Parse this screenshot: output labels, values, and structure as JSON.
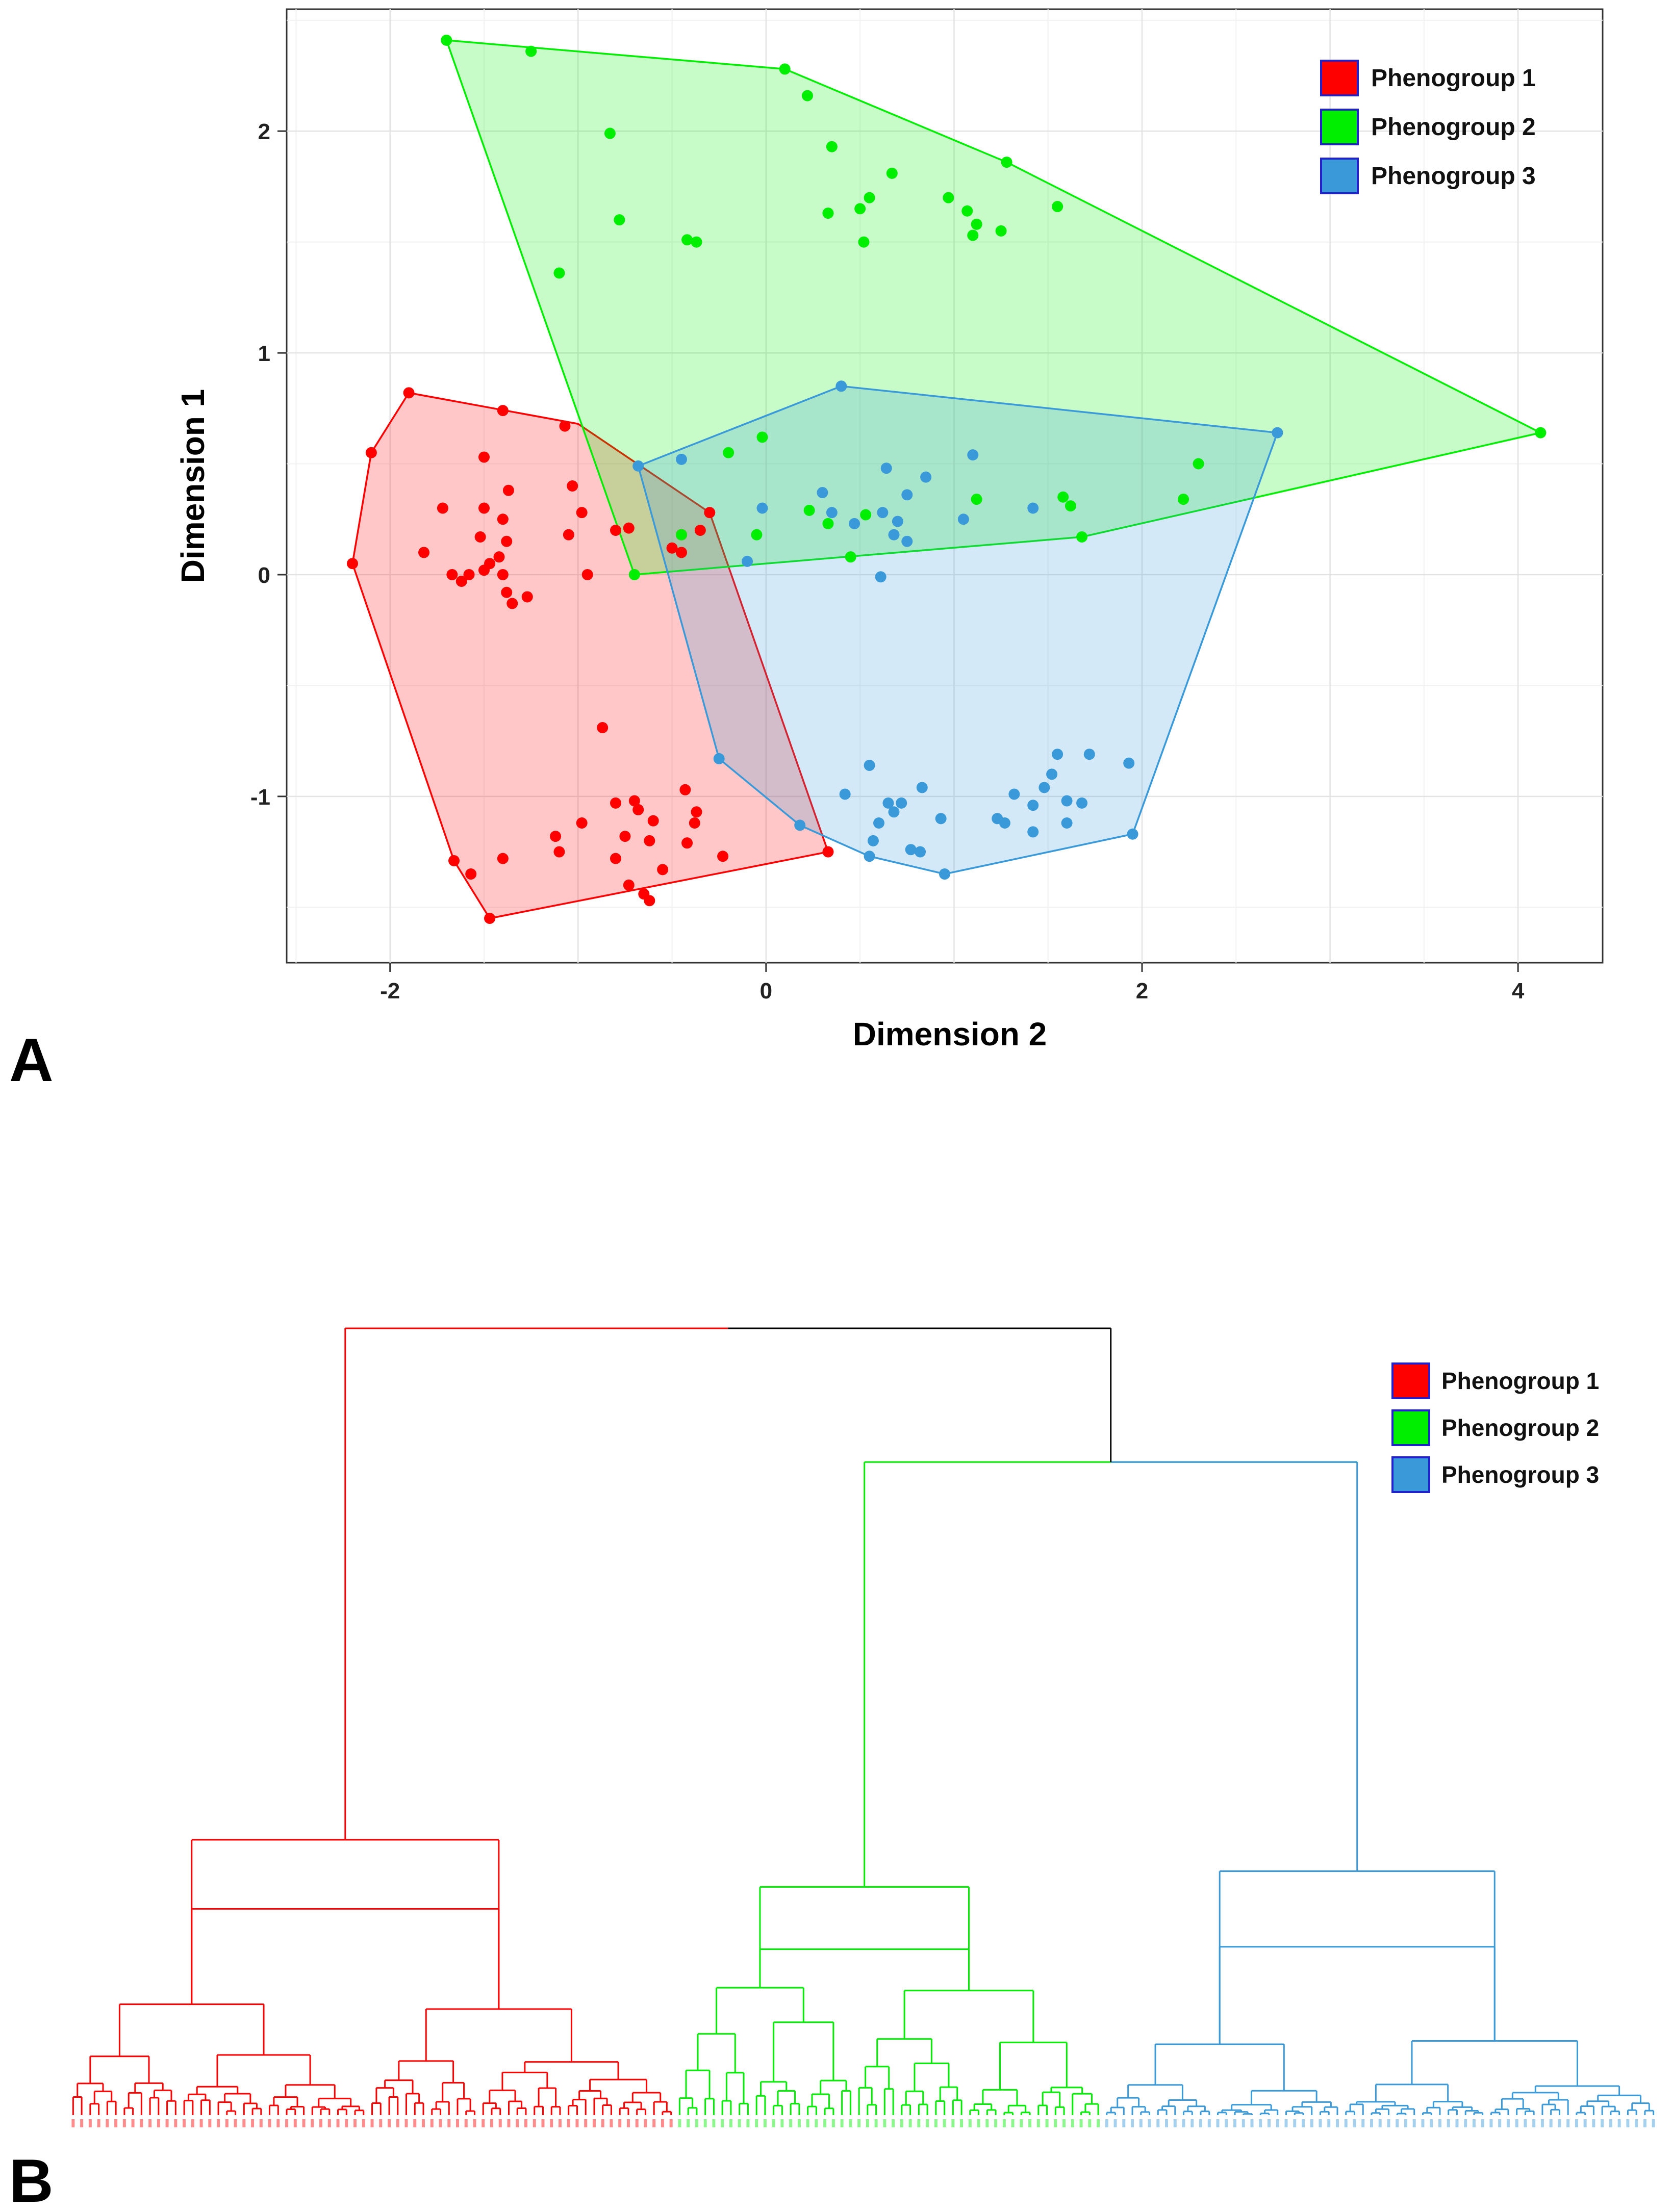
{
  "figure": {
    "panel_a_letter": "A",
    "panel_b_letter": "B"
  },
  "chart_data": [
    {
      "type": "scatter",
      "panel": "A",
      "title": "",
      "xlabel": "Dimension 2",
      "ylabel": "Dimension 1",
      "xlim": [
        -2.55,
        4.45
      ],
      "ylim": [
        -1.75,
        2.55
      ],
      "xticks": [
        -2,
        0,
        2,
        4
      ],
      "yticks": [
        -1,
        0,
        1,
        2
      ],
      "grid": true,
      "legend_position": "top-right",
      "series": [
        {
          "name": "Phenogroup 1",
          "color": "#ff0000",
          "fill": "#ff9999",
          "hull": [
            [
              -1.9,
              0.82
            ],
            [
              -1.0,
              0.68
            ],
            [
              -0.3,
              0.28
            ],
            [
              0.33,
              -1.25
            ],
            [
              -1.47,
              -1.55
            ],
            [
              -1.66,
              -1.29
            ],
            [
              -2.2,
              0.05
            ],
            [
              -2.1,
              0.55
            ]
          ],
          "points": [
            [
              -1.9,
              0.82
            ],
            [
              -2.1,
              0.55
            ],
            [
              -2.2,
              0.05
            ],
            [
              -1.4,
              0.74
            ],
            [
              -1.07,
              0.67
            ],
            [
              -1.5,
              0.53
            ],
            [
              -1.82,
              0.1
            ],
            [
              -1.72,
              0.3
            ],
            [
              -1.5,
              0.3
            ],
            [
              -1.37,
              0.38
            ],
            [
              -1.4,
              0.25
            ],
            [
              -1.52,
              0.17
            ],
            [
              -1.42,
              0.08
            ],
            [
              -1.47,
              0.05
            ],
            [
              -1.5,
              0.02
            ],
            [
              -1.62,
              -0.03
            ],
            [
              -1.67,
              0.0
            ],
            [
              -1.58,
              0.0
            ],
            [
              -1.4,
              0.0
            ],
            [
              -1.38,
              -0.08
            ],
            [
              -1.35,
              -0.13
            ],
            [
              -1.27,
              -0.1
            ],
            [
              -1.38,
              0.15
            ],
            [
              -1.03,
              0.4
            ],
            [
              -0.98,
              0.28
            ],
            [
              -1.05,
              0.18
            ],
            [
              -0.95,
              0.0
            ],
            [
              -0.8,
              0.2
            ],
            [
              -0.73,
              0.21
            ],
            [
              -0.3,
              0.28
            ],
            [
              -0.35,
              0.2
            ],
            [
              -0.45,
              0.18
            ],
            [
              -0.5,
              0.12
            ],
            [
              -0.45,
              0.1
            ],
            [
              -0.87,
              -0.69
            ],
            [
              -0.8,
              -1.03
            ],
            [
              -0.7,
              -1.02
            ],
            [
              -0.68,
              -1.06
            ],
            [
              -0.6,
              -1.11
            ],
            [
              -0.75,
              -1.18
            ],
            [
              -0.62,
              -1.2
            ],
            [
              -0.8,
              -1.28
            ],
            [
              -0.98,
              -1.12
            ],
            [
              -1.12,
              -1.18
            ],
            [
              -1.1,
              -1.25
            ],
            [
              -0.55,
              -1.33
            ],
            [
              -0.42,
              -1.21
            ],
            [
              -0.38,
              -1.12
            ],
            [
              -0.23,
              -1.27
            ],
            [
              -0.43,
              -0.97
            ],
            [
              -0.37,
              -1.07
            ],
            [
              -1.66,
              -1.29
            ],
            [
              -1.57,
              -1.35
            ],
            [
              -1.4,
              -1.28
            ],
            [
              -1.47,
              -1.55
            ],
            [
              -0.73,
              -1.4
            ],
            [
              -0.65,
              -1.44
            ],
            [
              -0.62,
              -1.47
            ],
            [
              0.33,
              -1.25
            ]
          ]
        },
        {
          "name": "Phenogroup 2",
          "color": "#00ee00",
          "fill": "#9ff79f",
          "hull": [
            [
              -1.7,
              2.41
            ],
            [
              0.1,
              2.28
            ],
            [
              1.28,
              1.86
            ],
            [
              4.12,
              0.64
            ],
            [
              1.68,
              0.17
            ],
            [
              -0.7,
              0.0
            ]
          ],
          "points": [
            [
              -1.7,
              2.41
            ],
            [
              -1.25,
              2.36
            ],
            [
              0.1,
              2.28
            ],
            [
              0.22,
              2.16
            ],
            [
              -0.83,
              1.99
            ],
            [
              0.35,
              1.93
            ],
            [
              0.67,
              1.81
            ],
            [
              1.28,
              1.86
            ],
            [
              0.55,
              1.7
            ],
            [
              0.97,
              1.7
            ],
            [
              1.55,
              1.66
            ],
            [
              1.07,
              1.64
            ],
            [
              0.33,
              1.63
            ],
            [
              0.5,
              1.65
            ],
            [
              1.12,
              1.58
            ],
            [
              1.25,
              1.55
            ],
            [
              1.1,
              1.53
            ],
            [
              -0.78,
              1.6
            ],
            [
              -0.42,
              1.51
            ],
            [
              -0.37,
              1.5
            ],
            [
              0.52,
              1.5
            ],
            [
              -1.1,
              1.36
            ],
            [
              4.12,
              0.64
            ],
            [
              2.3,
              0.5
            ],
            [
              -0.02,
              0.62
            ],
            [
              -0.2,
              0.55
            ],
            [
              2.22,
              0.34
            ],
            [
              1.12,
              0.34
            ],
            [
              1.58,
              0.35
            ],
            [
              1.62,
              0.31
            ],
            [
              0.23,
              0.29
            ],
            [
              0.33,
              0.23
            ],
            [
              0.53,
              0.27
            ],
            [
              0.45,
              0.08
            ],
            [
              1.68,
              0.17
            ],
            [
              -0.05,
              0.18
            ],
            [
              -0.45,
              0.18
            ],
            [
              -0.7,
              0.0
            ]
          ]
        },
        {
          "name": "Phenogroup 3",
          "color": "#3a9ad9",
          "fill": "#a9d4f1",
          "hull": [
            [
              -0.68,
              0.49
            ],
            [
              0.4,
              0.85
            ],
            [
              2.72,
              0.64
            ],
            [
              1.95,
              -1.17
            ],
            [
              0.95,
              -1.35
            ],
            [
              0.55,
              -1.27
            ],
            [
              0.18,
              -1.13
            ],
            [
              -0.25,
              -0.83
            ]
          ],
          "points": [
            [
              -0.68,
              0.49
            ],
            [
              -0.45,
              0.52
            ],
            [
              0.4,
              0.85
            ],
            [
              2.72,
              0.64
            ],
            [
              1.1,
              0.54
            ],
            [
              0.64,
              0.48
            ],
            [
              0.85,
              0.44
            ],
            [
              0.3,
              0.37
            ],
            [
              0.75,
              0.36
            ],
            [
              -0.02,
              0.3
            ],
            [
              0.35,
              0.28
            ],
            [
              0.62,
              0.28
            ],
            [
              1.05,
              0.25
            ],
            [
              1.42,
              0.3
            ],
            [
              0.7,
              0.24
            ],
            [
              0.75,
              0.15
            ],
            [
              0.47,
              0.23
            ],
            [
              0.68,
              0.18
            ],
            [
              -0.1,
              0.06
            ],
            [
              0.61,
              -0.01
            ],
            [
              -0.25,
              -0.83
            ],
            [
              0.55,
              -0.86
            ],
            [
              0.83,
              -0.96
            ],
            [
              0.42,
              -0.99
            ],
            [
              0.65,
              -1.03
            ],
            [
              0.72,
              -1.03
            ],
            [
              0.68,
              -1.07
            ],
            [
              0.6,
              -1.12
            ],
            [
              0.93,
              -1.1
            ],
            [
              1.23,
              -1.1
            ],
            [
              1.27,
              -1.12
            ],
            [
              1.32,
              -0.99
            ],
            [
              1.42,
              -1.04
            ],
            [
              1.48,
              -0.96
            ],
            [
              1.52,
              -0.9
            ],
            [
              1.55,
              -0.81
            ],
            [
              1.72,
              -0.81
            ],
            [
              1.93,
              -0.85
            ],
            [
              1.6,
              -1.02
            ],
            [
              1.68,
              -1.03
            ],
            [
              1.6,
              -1.12
            ],
            [
              1.42,
              -1.16
            ],
            [
              1.95,
              -1.17
            ],
            [
              0.18,
              -1.13
            ],
            [
              0.57,
              -1.2
            ],
            [
              0.55,
              -1.27
            ],
            [
              0.77,
              -1.24
            ],
            [
              0.82,
              -1.25
            ],
            [
              0.95,
              -1.35
            ]
          ]
        }
      ]
    },
    {
      "type": "dendrogram",
      "panel": "B",
      "title": "",
      "xlabel": "",
      "ylabel": "",
      "legend_position": "top-right",
      "leaf_count": 186,
      "groups": [
        {
          "name": "Phenogroup 1",
          "color": "#ff0000",
          "fill": "#ff0000",
          "leaves": 71
        },
        {
          "name": "Phenogroup 2",
          "color": "#00ee00",
          "fill": "#00ee00",
          "leaves": 50
        },
        {
          "name": "Phenogroup 3",
          "color": "#3a9ad9",
          "fill": "#3a9ad9",
          "leaves": 65
        }
      ],
      "root_height": 1.0,
      "merges": [
        {
          "label": "root",
          "height": 1.0,
          "color": "#000000"
        },
        {
          "label": "group2+group3",
          "height": 0.83,
          "color": "#00ee00"
        },
        {
          "label": "group1",
          "height": 0.97,
          "color": "#ff0000"
        },
        {
          "label": "group1-sub",
          "height": 0.35,
          "color": "#ff0000"
        },
        {
          "label": "group2-sub",
          "height": 0.29,
          "color": "#00ee00"
        },
        {
          "label": "group3-sub",
          "height": 0.31,
          "color": "#3a9ad9"
        }
      ]
    }
  ]
}
